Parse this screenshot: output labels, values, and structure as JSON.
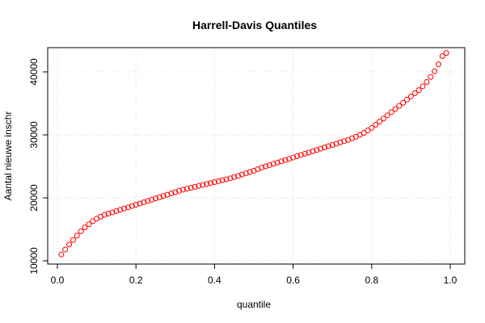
{
  "chart_data": {
    "type": "scatter",
    "title": "Harrell-Davis Quantiles",
    "xlabel": "quantile",
    "ylabel": "Aantal nieuwe inschr",
    "xlim": [
      0,
      1
    ],
    "ylim": [
      10000,
      40000
    ],
    "x_ticks": [
      0,
      0.2,
      0.4,
      0.6,
      0.8,
      1
    ],
    "x_tick_labels": [
      "0.0",
      "0.2",
      "0.4",
      "0.6",
      "0.8",
      "1.0"
    ],
    "y_ticks": [
      10000,
      20000,
      30000,
      40000
    ],
    "y_tick_labels": [
      "10000",
      "20000",
      "30000",
      "40000"
    ],
    "grid": true,
    "marker": "open-circle",
    "color": "#ff0000",
    "series": [
      {
        "x": [
          0.01,
          0.02,
          0.03,
          0.04,
          0.05,
          0.06,
          0.07,
          0.08,
          0.09,
          0.1,
          0.11,
          0.12,
          0.13,
          0.14,
          0.15,
          0.16,
          0.17,
          0.18,
          0.19,
          0.2,
          0.21,
          0.22,
          0.23,
          0.24,
          0.25,
          0.26,
          0.27,
          0.28,
          0.29,
          0.3,
          0.31,
          0.32,
          0.33,
          0.34,
          0.35,
          0.36,
          0.37,
          0.38,
          0.39,
          0.4,
          0.41,
          0.42,
          0.43,
          0.44,
          0.45,
          0.46,
          0.47,
          0.48,
          0.49,
          0.5,
          0.51,
          0.52,
          0.53,
          0.54,
          0.55,
          0.56,
          0.57,
          0.58,
          0.59,
          0.6,
          0.61,
          0.62,
          0.63,
          0.64,
          0.65,
          0.66,
          0.67,
          0.68,
          0.69,
          0.7,
          0.71,
          0.72,
          0.73,
          0.74,
          0.75,
          0.76,
          0.77,
          0.78,
          0.79,
          0.8,
          0.81,
          0.82,
          0.83,
          0.84,
          0.85,
          0.86,
          0.87,
          0.88,
          0.89,
          0.9,
          0.91,
          0.92,
          0.93,
          0.94,
          0.95,
          0.96,
          0.97,
          0.98,
          0.99
        ],
        "y": [
          11000,
          11800,
          12600,
          13300,
          14000,
          14700,
          15300,
          15800,
          16300,
          16700,
          17000,
          17300,
          17500,
          17700,
          17900,
          18100,
          18300,
          18500,
          18700,
          18900,
          19100,
          19300,
          19500,
          19700,
          19900,
          20100,
          20300,
          20500,
          20700,
          20900,
          21100,
          21300,
          21450,
          21600,
          21750,
          21900,
          22050,
          22200,
          22350,
          22500,
          22650,
          22800,
          22950,
          23100,
          23300,
          23500,
          23700,
          23900,
          24100,
          24300,
          24550,
          24800,
          25000,
          25200,
          25400,
          25600,
          25800,
          26000,
          26200,
          26400,
          26600,
          26800,
          27000,
          27200,
          27400,
          27600,
          27800,
          28000,
          28200,
          28400,
          28600,
          28800,
          29000,
          29200,
          29450,
          29700,
          30000,
          30300,
          30700,
          31100,
          31600,
          32100,
          32600,
          33100,
          33600,
          34100,
          34600,
          35100,
          35600,
          36100,
          36600,
          37100,
          37700,
          38400,
          39200,
          40100,
          41200,
          42500,
          43000
        ]
      }
    ]
  }
}
